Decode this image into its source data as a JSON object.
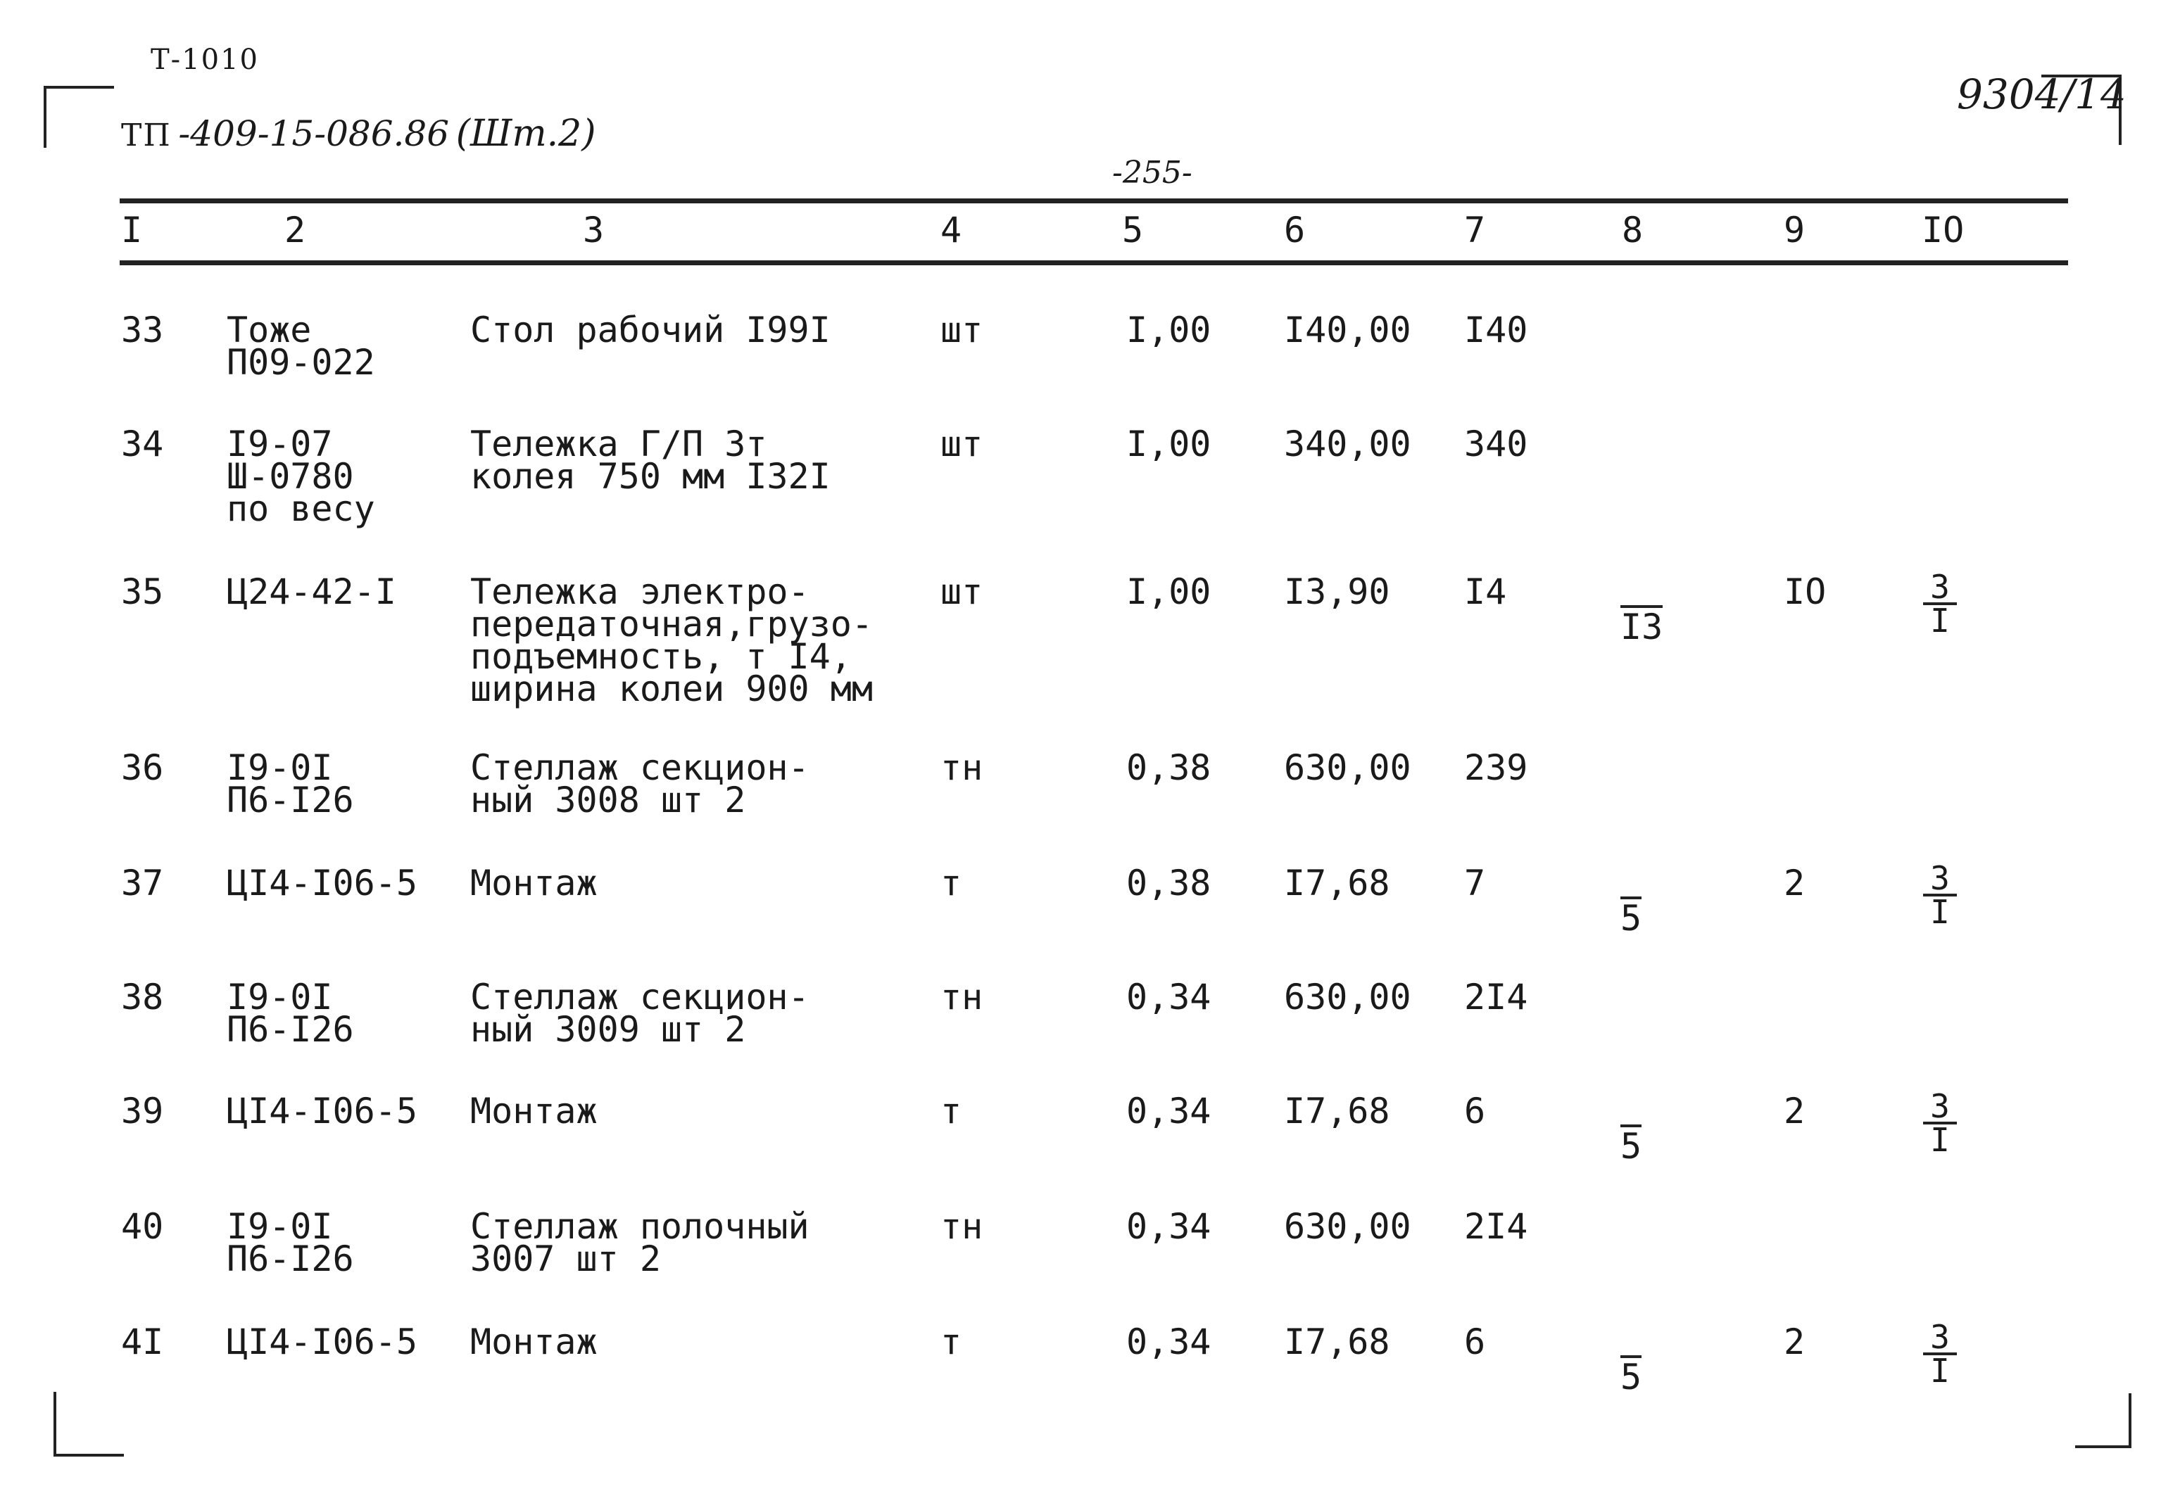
{
  "sheet": {
    "code": "Т-1010",
    "project_print": "ТП",
    "project_hand": "-409-15-086.86",
    "album": "(Шт.2)",
    "page_number": "-255-",
    "doc_number": "9304/14"
  },
  "columns": [
    "I",
    "2",
    "3",
    "4",
    "5",
    "6",
    "7",
    "8",
    "9",
    "IO"
  ],
  "rows": [
    {
      "n": "33",
      "code": [
        "Тоже",
        "П09-022"
      ],
      "name": [
        "Стол рабочий I99I"
      ],
      "unit": "шт",
      "qty": "I,00",
      "price": "I40,00",
      "total": "I40",
      "c8": "",
      "c9": "",
      "c10_num": "",
      "c10_den": ""
    },
    {
      "n": "34",
      "code": [
        "I9-07",
        "Ш-0780",
        "по весу"
      ],
      "name": [
        "Тележка Г/П 3т",
        "колея 750 мм I32I"
      ],
      "unit": "шт",
      "qty": "I,00",
      "price": "340,00",
      "total": "340",
      "c8": "",
      "c9": "",
      "c10_num": "",
      "c10_den": ""
    },
    {
      "n": "35",
      "code": [
        "Ц24-42-I"
      ],
      "name": [
        "Тележка электро-",
        "передаточная,грузо-",
        "подъемность, т I4,",
        "ширина колеи 900 мм"
      ],
      "unit": "шт",
      "qty": "I,00",
      "price": "I3,90",
      "total": "I4",
      "c8": "I3",
      "c9": "IO",
      "c10_num": "3",
      "c10_den": "I"
    },
    {
      "n": "36",
      "code": [
        "I9-0I",
        "П6-I26"
      ],
      "name": [
        "Стеллаж секцион-",
        "ный 3008 шт 2"
      ],
      "unit": "тн",
      "qty": "0,38",
      "price": "630,00",
      "total": "239",
      "c8": "",
      "c9": "",
      "c10_num": "",
      "c10_den": ""
    },
    {
      "n": "37",
      "code": [
        "ЦI4-I06-5"
      ],
      "name": [
        "Монтаж"
      ],
      "unit": "т",
      "qty": "0,38",
      "price": "I7,68",
      "total": "7",
      "c8": "5",
      "c9": "2",
      "c10_num": "3",
      "c10_den": "I"
    },
    {
      "n": "38",
      "code": [
        "I9-0I",
        "П6-I26"
      ],
      "name": [
        "Стеллаж секцион-",
        "ный 3009 шт 2"
      ],
      "unit": "тн",
      "qty": "0,34",
      "price": "630,00",
      "total": "2I4",
      "c8": "",
      "c9": "",
      "c10_num": "",
      "c10_den": ""
    },
    {
      "n": "39",
      "code": [
        "ЦI4-I06-5"
      ],
      "name": [
        "Монтаж"
      ],
      "unit": "т",
      "qty": "0,34",
      "price": "I7,68",
      "total": "6",
      "c8": "5",
      "c9": "2",
      "c10_num": "3",
      "c10_den": "I"
    },
    {
      "n": "40",
      "code": [
        "I9-0I",
        "П6-I26"
      ],
      "name": [
        "Стеллаж полочный",
        "3007 шт 2"
      ],
      "unit": "тн",
      "qty": "0,34",
      "price": "630,00",
      "total": "2I4",
      "c8": "",
      "c9": "",
      "c10_num": "",
      "c10_den": ""
    },
    {
      "n": "4I",
      "code": [
        "ЦI4-I06-5"
      ],
      "name": [
        "Монтаж"
      ],
      "unit": "т",
      "qty": "0,34",
      "price": "I7,68",
      "total": "6",
      "c8": "5",
      "c9": "2",
      "c10_num": "3",
      "c10_den": "I"
    }
  ]
}
